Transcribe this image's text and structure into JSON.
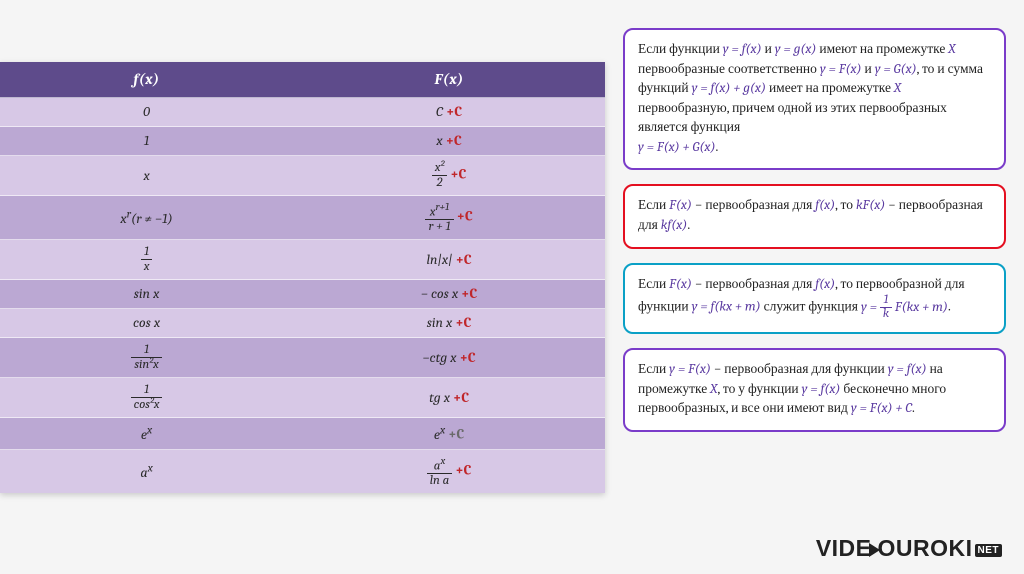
{
  "colors": {
    "header_bg": "#5e4b8b",
    "row_a": "#d7c8e6",
    "row_b": "#bba8d3",
    "const_red": "#c0262a",
    "const_grey": "#6a6a6a",
    "rule1_border": "#7a3cc9",
    "rule2_border": "#e40f20",
    "rule3_border": "#0aa0c6",
    "rule4_border": "#7a3cc9",
    "math_purple": "#5a3aa0"
  },
  "table": {
    "head_f": "f(x)",
    "head_F": "F(x)",
    "rows": [
      {
        "f": "0",
        "F_base": "C",
        "const_style": "red"
      },
      {
        "f": "1",
        "F_base": "x",
        "const_style": "red"
      },
      {
        "f": "x",
        "F_frac": {
          "num": "x²",
          "den": "2"
        },
        "const_style": "red"
      },
      {
        "f_html": "x<sup>r</sup>(r ≠ −1)",
        "F_frac": {
          "num": "x<sup>r+1</sup>",
          "den": "r + 1"
        },
        "const_style": "red"
      },
      {
        "f_frac": {
          "num": "1",
          "den": "x"
        },
        "F_base": "ln|x|",
        "const_style": "red"
      },
      {
        "f": "sin x",
        "F_base": "− cos x",
        "const_style": "red"
      },
      {
        "f": "cos x",
        "F_base": "sin x",
        "const_style": "red"
      },
      {
        "f_frac": {
          "num": "1",
          "den": "sin²x"
        },
        "F_base": "−ctg x",
        "const_style": "red"
      },
      {
        "f_frac": {
          "num": "1",
          "den": "cos²x"
        },
        "F_base": "tg x",
        "const_style": "red"
      },
      {
        "f_html": "e<sup>x</sup>",
        "F_html": "e<sup>x</sup>",
        "const_style": "grey"
      },
      {
        "f_html": "a<sup>x</sup>",
        "F_frac": {
          "num": "a<sup>x</sup>",
          "den": "ln a"
        },
        "const_style": "red"
      }
    ],
    "plus_c": "+C"
  },
  "rules": {
    "r1": "Если функции <span class='m fmath'>y = f(x)</span> и <span class='m fmath'>y = g(x)</span> имеют на промежутке <span class='m fmath'>X</span> первообразные соответственно <span class='m fmath'>y = F(x)</span> и <span class='m fmath'>y = G(x)</span>, то и сумма функций <span class='m fmath'>y = f(x) + g(x)</span> имеет на промежутке <span class='m fmath'>X</span> первообразную, причем одной из этих первообразных является функция<br><span class='m fmath'>y = F(x) + G(x)</span>.",
    "r2": "Если <span class='m fmath'>F(x)</span> − первообразная для <span class='m fmath'>f(x)</span>, то <span class='m fmath'>kF(x)</span> − первообразная для <span class='m fmath'>kf(x)</span>.",
    "r3": "Если <span class='m fmath'>F(x)</span> − первообразная для <span class='m fmath'>f(x)</span>, то первообразной для функции <span class='m fmath'>y = f(kx + m)</span> служит функция <span class='m fmath'>y = <span class='frac'><span class='num'>1</span><span class='den'>k</span></span> F(kx + m)</span>.",
    "r4": "Если <span class='m fmath'>y = F(x)</span> − первообразная для функции <span class='m fmath'>y = f(x)</span> на промежутке <span class='m fmath'>X</span>, то у функции <span class='m fmath'>y = f(x)</span> бесконечно много первообразных, и все они имеют вид <span class='m fmath'>y = F(x) + C</span>."
  },
  "brand": {
    "part1": "VIDE",
    "part2": "OUROKI",
    "net": "NET"
  }
}
